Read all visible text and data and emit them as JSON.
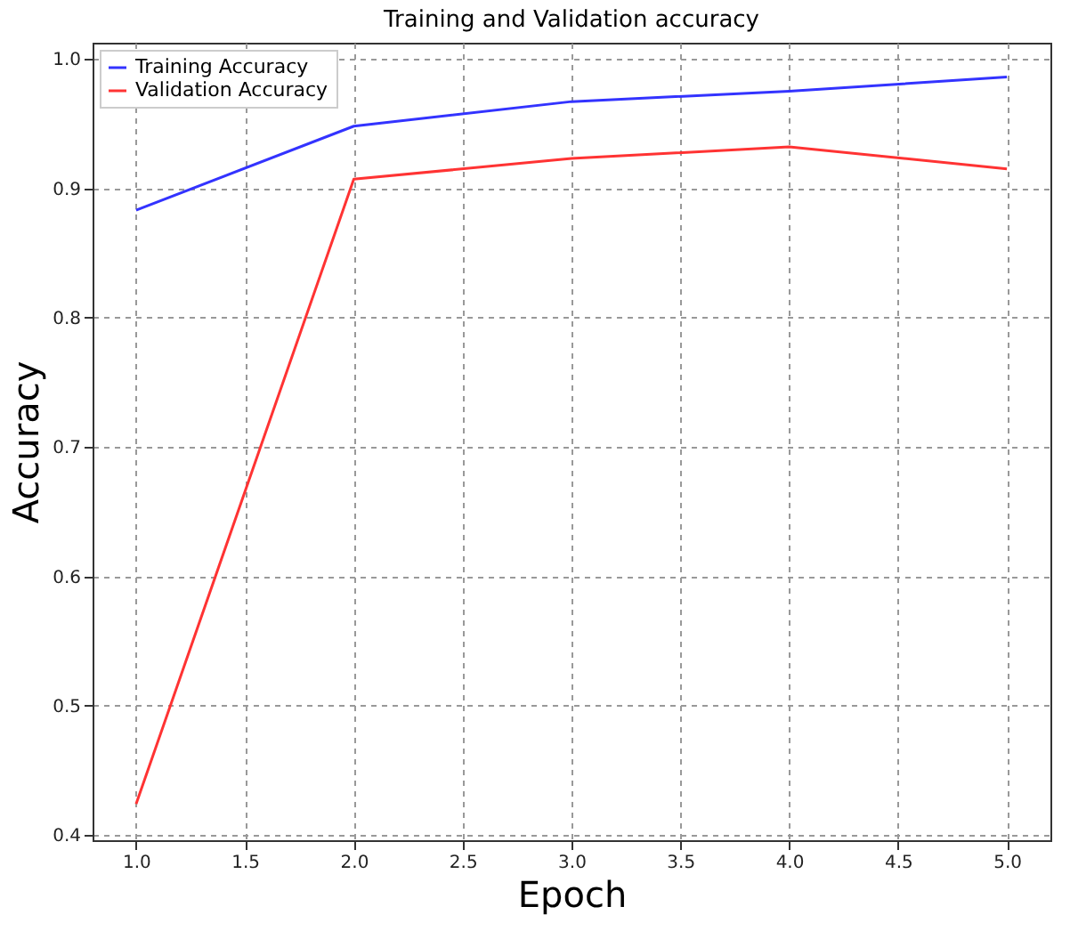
{
  "chart_data": {
    "type": "line",
    "title": "Training and Validation accuracy",
    "xlabel": "Epoch",
    "ylabel": "Accuracy",
    "x": [
      1,
      2,
      3,
      4,
      5
    ],
    "series": [
      {
        "name": "Training Accuracy",
        "color": "#3333ff",
        "values": [
          0.883,
          0.948,
          0.967,
          0.975,
          0.986
        ]
      },
      {
        "name": "Validation Accuracy",
        "color": "#ff3333",
        "values": [
          0.424,
          0.907,
          0.923,
          0.932,
          0.915
        ]
      }
    ],
    "xlim": [
      0.8,
      5.2
    ],
    "xticks": [
      {
        "value": 1,
        "label": "1.0"
      },
      1.5,
      {
        "value": 2,
        "label": "2.0"
      },
      2.5,
      {
        "value": 3,
        "label": "3.0"
      },
      3.5,
      {
        "value": 4,
        "label": "4.0"
      },
      4.5,
      {
        "value": 5,
        "label": "5.0"
      }
    ],
    "ylim": [
      0.396,
      1.0125
    ],
    "yticks": [
      0.4,
      0.5,
      0.6,
      0.7,
      0.8,
      0.9,
      {
        "value": 1,
        "label": "1.0"
      }
    ],
    "grid": true,
    "legend": "top left",
    "line_style": "solid",
    "marker": "none"
  }
}
